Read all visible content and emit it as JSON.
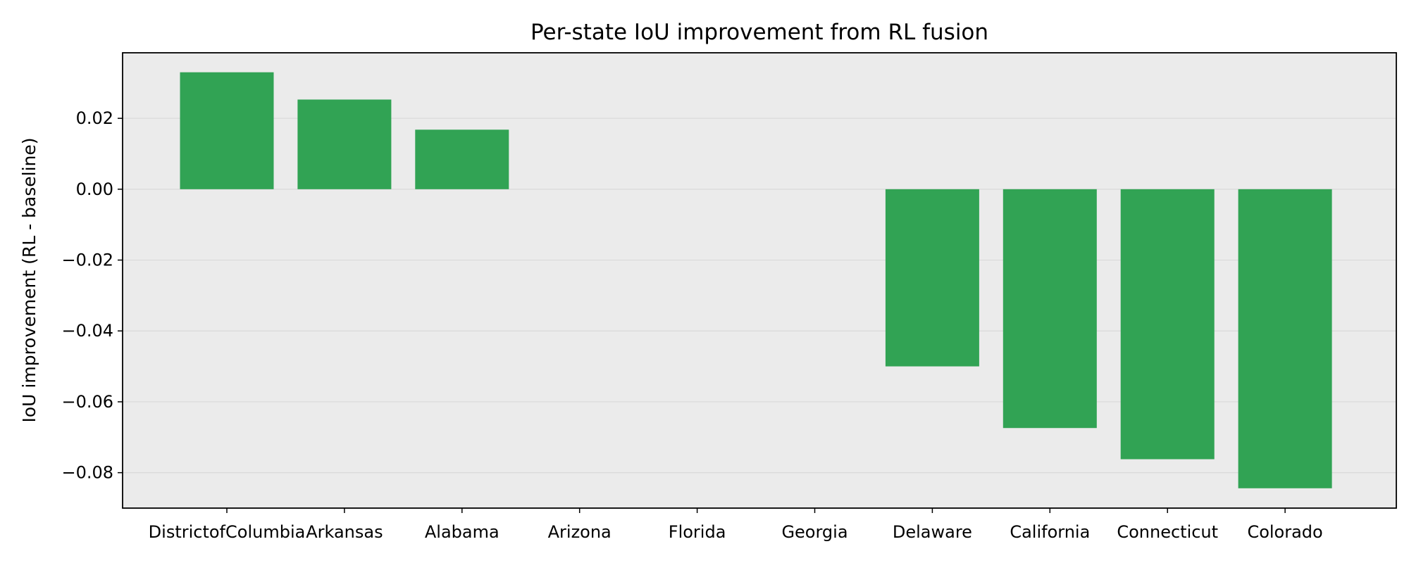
{
  "chart_data": {
    "type": "bar",
    "title": "Per-state IoU improvement from RL fusion",
    "xlabel": "",
    "ylabel": "IoU improvement (RL - baseline)",
    "categories": [
      "DistrictofColumbia",
      "Arkansas",
      "Alabama",
      "Arizona",
      "Florida",
      "Georgia",
      "Delaware",
      "California",
      "Connecticut",
      "Colorado"
    ],
    "values": [
      0.033,
      0.0253,
      0.0168,
      0.0,
      0.0,
      0.0,
      -0.05,
      -0.0674,
      -0.0762,
      -0.0844
    ],
    "ylim": [
      -0.09,
      0.0385
    ],
    "yticks": [
      0.02,
      0.0,
      -0.02,
      -0.04,
      -0.06,
      -0.08
    ],
    "ytick_labels": [
      "0.02",
      "0.00",
      "−0.02",
      "−0.04",
      "−0.06",
      "−0.08"
    ],
    "grid": "y",
    "bar_color": "#31a354"
  }
}
